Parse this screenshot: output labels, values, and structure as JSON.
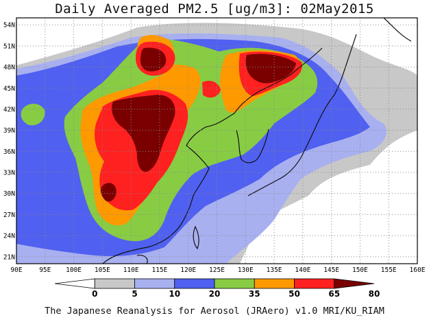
{
  "title": "Daily Averaged PM2.5 [ug/m3]: 02May2015",
  "footer": "The Japanese Reanalysis for Aerosol (JRAero) v1.0 MRI/KU_RIAM",
  "map": {
    "lon_range": [
      90,
      160
    ],
    "lat_range": [
      20,
      55
    ],
    "lon_ticks": [
      "90E",
      "95E",
      "100E",
      "105E",
      "110E",
      "115E",
      "120E",
      "125E",
      "130E",
      "135E",
      "140E",
      "145E",
      "150E",
      "155E",
      "160E"
    ],
    "lat_ticks": [
      "21N",
      "24N",
      "27N",
      "30N",
      "33N",
      "36N",
      "39N",
      "42N",
      "45N",
      "48N",
      "51N",
      "54N"
    ],
    "grid": true
  },
  "colorbar": {
    "labels": [
      "0",
      "5",
      "10",
      "20",
      "35",
      "50",
      "65",
      "80"
    ],
    "colors": [
      "#ffffff",
      "#c8c8c8",
      "#a8b0f0",
      "#5060f0",
      "#88cc44",
      "#ff9900",
      "#ff2020",
      "#7a0000"
    ]
  }
}
